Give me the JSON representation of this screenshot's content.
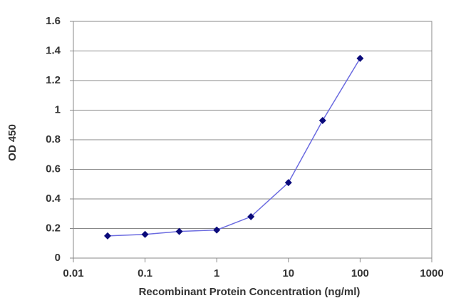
{
  "chart_data": {
    "type": "line",
    "x_label": "Recombinant Protein Concentration (ng/ml)",
    "y_label": "OD 450",
    "x_scale": "log",
    "x": [
      0.03,
      0.1,
      0.3,
      1,
      3,
      10,
      30,
      100
    ],
    "series": [
      {
        "name": "OD 450",
        "color": "#6b6be0",
        "marker_color": "#0a0a7a",
        "values": [
          0.15,
          0.16,
          0.18,
          0.19,
          0.28,
          0.51,
          0.93,
          1.35
        ]
      }
    ],
    "xlim": [
      0.01,
      1000
    ],
    "xticks": [
      0.01,
      0.1,
      1,
      10,
      100,
      1000
    ],
    "ylim": [
      0,
      1.6
    ],
    "yticks": [
      0,
      0.2,
      0.4,
      0.6,
      0.8,
      1,
      1.2,
      1.4,
      1.6
    ],
    "grid": true
  }
}
